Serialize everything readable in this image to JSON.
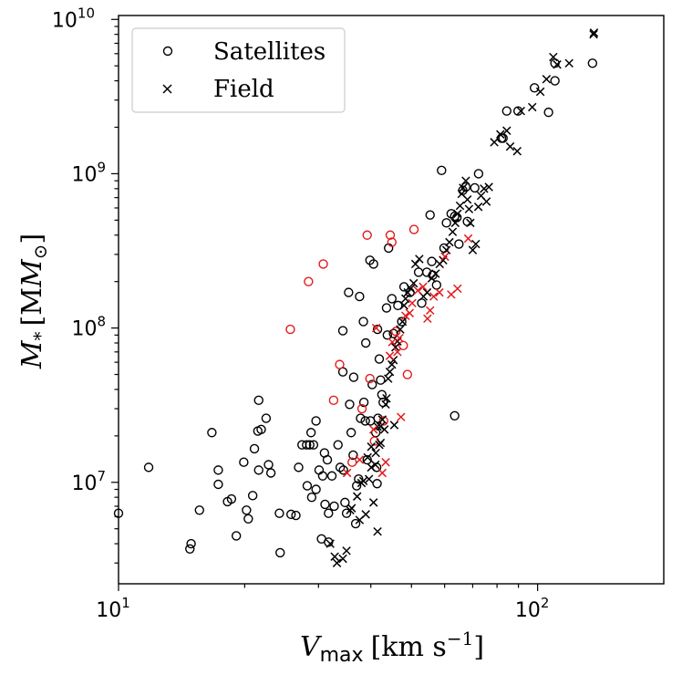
{
  "chart_data": {
    "type": "scatter",
    "xscale": "log",
    "yscale": "log",
    "xlim": [
      10,
      200
    ],
    "ylim": [
      2200000,
      10600000000
    ],
    "xlabel": {
      "var": "V",
      "sub": "max",
      "unit": "[km s",
      "unit_sup": "−1",
      "close": "]"
    },
    "ylabel": {
      "var": "M",
      "sub": "*",
      "unit": "[M",
      "unit_sub": "⊙",
      "close": "]"
    },
    "xticks": [
      {
        "value": 10,
        "base": "10",
        "exp": "1"
      },
      {
        "value": 100,
        "base": "10",
        "exp": "2"
      }
    ],
    "yticks": [
      {
        "value": 10000000,
        "base": "10",
        "exp": "7"
      },
      {
        "value": 100000000,
        "base": "10",
        "exp": "8"
      },
      {
        "value": 1000000000,
        "base": "10",
        "exp": "9"
      },
      {
        "value": 10000000000,
        "base": "10",
        "exp": "10"
      }
    ],
    "legend": {
      "location": "upper-left",
      "entries": [
        {
          "label": "Satellites",
          "marker": "circle"
        },
        {
          "label": "Field",
          "marker": "x"
        }
      ]
    },
    "colors": {
      "black": "#000000",
      "red": "#e31a1c"
    },
    "series": [
      {
        "name": "Satellites",
        "marker": "circle",
        "color": "black",
        "points": [
          [
            10.0,
            6300000.0
          ],
          [
            11.8,
            12500000.0
          ],
          [
            14.8,
            3700000.0
          ],
          [
            14.9,
            4000000.0
          ],
          [
            15.6,
            6600000.0
          ],
          [
            16.7,
            21000000.0
          ],
          [
            17.3,
            12000000.0
          ],
          [
            17.3,
            9700000.0
          ],
          [
            18.2,
            7500000.0
          ],
          [
            18.6,
            7800000.0
          ],
          [
            19.1,
            4500000.0
          ],
          [
            19.9,
            13500000.0
          ],
          [
            20.2,
            6600000.0
          ],
          [
            20.4,
            5800000.0
          ],
          [
            20.9,
            8200000.0
          ],
          [
            21.1,
            16500000.0
          ],
          [
            21.5,
            21500000.0
          ],
          [
            21.6,
            34000000.0
          ],
          [
            21.6,
            12000000.0
          ],
          [
            21.9,
            22000000.0
          ],
          [
            22.5,
            26000000.0
          ],
          [
            22.8,
            13000000.0
          ],
          [
            23.1,
            11500000.0
          ],
          [
            24.2,
            6300000.0
          ],
          [
            24.3,
            3500000.0
          ],
          [
            25.8,
            6200000.0
          ],
          [
            26.5,
            6100000.0
          ],
          [
            26.9,
            12500000.0
          ],
          [
            27.4,
            17500000.0
          ],
          [
            28.1,
            17500000.0
          ],
          [
            28.2,
            9500000.0
          ],
          [
            28.6,
            17500000.0
          ],
          [
            28.8,
            21000000.0
          ],
          [
            28.9,
            8000000.0
          ],
          [
            29.2,
            17500000.0
          ],
          [
            29.6,
            25000000.0
          ],
          [
            29.6,
            9000000.0
          ],
          [
            30.1,
            12000000.0
          ],
          [
            30.5,
            4300000.0
          ],
          [
            30.7,
            11000000.0
          ],
          [
            31.0,
            15500000.0
          ],
          [
            31.1,
            7200000.0
          ],
          [
            31.5,
            14000000.0
          ],
          [
            31.7,
            6300000.0
          ],
          [
            31.7,
            4100000.0
          ],
          [
            32.3,
            11000000.0
          ],
          [
            32.7,
            7000000.0
          ],
          [
            33.4,
            17500000.0
          ],
          [
            33.8,
            12500000.0
          ],
          [
            34.3,
            96000000.0
          ],
          [
            34.3,
            52000000.0
          ],
          [
            34.4,
            12000000.0
          ],
          [
            34.7,
            7400000.0
          ],
          [
            35.0,
            6300000.0
          ],
          [
            35.4,
            170000000.0
          ],
          [
            35.6,
            32000000.0
          ],
          [
            35.9,
            21000000.0
          ],
          [
            36.3,
            15000000.0
          ],
          [
            36.4,
            48000000.0
          ],
          [
            36.8,
            5400000.0
          ],
          [
            37.0,
            9500000.0
          ],
          [
            37.4,
            10500000.0
          ],
          [
            37.6,
            160000000.0
          ],
          [
            37.8,
            26000000.0
          ],
          [
            38.4,
            110000000.0
          ],
          [
            38.5,
            33000000.0
          ],
          [
            38.8,
            25000000.0
          ],
          [
            38.9,
            80000000.0
          ],
          [
            39.2,
            14000000.0
          ],
          [
            39.8,
            275000000.0
          ],
          [
            39.9,
            25000000.0
          ],
          [
            40.3,
            43000000.0
          ],
          [
            40.6,
            260000000.0
          ],
          [
            41.1,
            21000000.0
          ],
          [
            41.3,
            12500000.0
          ],
          [
            41.5,
            98000000.0
          ],
          [
            41.6,
            26000000.0
          ],
          [
            41.9,
            63000000.0
          ],
          [
            42.2,
            46000000.0
          ],
          [
            42.5,
            37000000.0
          ],
          [
            42.8,
            33000000.0
          ],
          [
            43.6,
            135000000.0
          ],
          [
            43.8,
            90000000.0
          ],
          [
            44.1,
            330000000.0
          ],
          [
            44.9,
            155000000.0
          ],
          [
            45.3,
            92000000.0
          ],
          [
            46.4,
            140000000.0
          ],
          [
            47.4,
            110000000.0
          ],
          [
            48.0,
            185000000.0
          ],
          [
            49.6,
            170000000.0
          ],
          [
            52.0,
            230000000.0
          ],
          [
            52.9,
            145000000.0
          ],
          [
            54.4,
            230000000.0
          ],
          [
            55.4,
            540000000.0
          ],
          [
            55.9,
            270000000.0
          ],
          [
            56.2,
            220000000.0
          ],
          [
            57.4,
            190000000.0
          ],
          [
            59.0,
            1050000000.0
          ],
          [
            59.8,
            330000000.0
          ],
          [
            60.6,
            480000000.0
          ],
          [
            62.2,
            550000000.0
          ],
          [
            63.4,
            530000000.0
          ],
          [
            64.2,
            520000000.0
          ],
          [
            64.9,
            350000000.0
          ],
          [
            66.3,
            780000000.0
          ],
          [
            67.4,
            820000000.0
          ],
          [
            68.0,
            490000000.0
          ],
          [
            70.8,
            810000000.0
          ],
          [
            72.3,
            1000000000.0
          ],
          [
            82.0,
            1700000000.0
          ],
          [
            82.7,
            1700000000.0
          ],
          [
            84.4,
            2550000000.0
          ],
          [
            89.8,
            2550000000.0
          ],
          [
            98.3,
            3600000000.0
          ],
          [
            106.2,
            2500000000.0
          ],
          [
            110.0,
            4000000000.0
          ],
          [
            110.0,
            5200000000.0
          ],
          [
            135.2,
            5200000000.0
          ],
          [
            63.4,
            27000000.0
          ],
          [
            41.4,
            9800000.0
          ]
        ]
      },
      {
        "name": "Satellites",
        "marker": "circle",
        "color": "red",
        "points": [
          [
            25.7,
            98000000.0
          ],
          [
            28.4,
            200000000.0
          ],
          [
            30.8,
            260000000.0
          ],
          [
            32.6,
            34000000.0
          ],
          [
            33.7,
            58000000.0
          ],
          [
            39.2,
            400000000.0
          ],
          [
            39.8,
            47000000.0
          ],
          [
            44.5,
            400000000.0
          ],
          [
            44.9,
            360000000.0
          ],
          [
            45.9,
            95000000.0
          ],
          [
            47.8,
            77000000.0
          ],
          [
            48.9,
            50000000.0
          ],
          [
            50.7,
            435000000.0
          ],
          [
            38.1,
            30000000.0
          ],
          [
            42.9,
            25000000.0
          ],
          [
            36.1,
            13500000.0
          ],
          [
            40.8,
            18500000.0
          ]
        ]
      },
      {
        "name": "Field",
        "marker": "x",
        "color": "black",
        "points": [
          [
            32.0,
            4000000.0
          ],
          [
            32.8,
            3300000.0
          ],
          [
            33.2,
            3000000.0
          ],
          [
            34.3,
            3200000.0
          ],
          [
            35.0,
            3600000.0
          ],
          [
            35.7,
            6600000.0
          ],
          [
            36.0,
            6800000.0
          ],
          [
            37.1,
            8100000.0
          ],
          [
            37.6,
            5700000.0
          ],
          [
            38.0,
            9900000.0
          ],
          [
            38.4,
            10200000.0
          ],
          [
            38.9,
            6200000.0
          ],
          [
            39.3,
            14500000.0
          ],
          [
            39.6,
            10500000.0
          ],
          [
            40.1,
            12500000.0
          ],
          [
            40.1,
            17000000.0
          ],
          [
            40.6,
            7400000.0
          ],
          [
            41.0,
            13000000.0
          ],
          [
            41.1,
            15500000.0
          ],
          [
            41.5,
            23000000.0
          ],
          [
            41.5,
            4800000.0
          ],
          [
            41.9,
            17500000.0
          ],
          [
            42.2,
            23000000.0
          ],
          [
            42.2,
            18000000.0
          ],
          [
            42.6,
            25500000.0
          ],
          [
            43.1,
            22000000.0
          ],
          [
            43.4,
            32000000.0
          ],
          [
            43.6,
            35000000.0
          ],
          [
            44.0,
            47000000.0
          ],
          [
            44.4,
            52000000.0
          ],
          [
            44.9,
            58000000.0
          ],
          [
            45.3,
            62000000.0
          ],
          [
            45.5,
            23500000.0
          ],
          [
            45.8,
            75000000.0
          ],
          [
            46.3,
            82000000.0
          ],
          [
            47.0,
            98000000.0
          ],
          [
            47.6,
            110000000.0
          ],
          [
            48.0,
            140000000.0
          ],
          [
            48.4,
            155000000.0
          ],
          [
            49.0,
            170000000.0
          ],
          [
            49.8,
            180000000.0
          ],
          [
            50.6,
            195000000.0
          ],
          [
            51.1,
            260000000.0
          ],
          [
            52.2,
            280000000.0
          ],
          [
            53.4,
            160000000.0
          ],
          [
            54.5,
            170000000.0
          ],
          [
            55.9,
            210000000.0
          ],
          [
            57.1,
            225000000.0
          ],
          [
            58.4,
            260000000.0
          ],
          [
            59.5,
            275000000.0
          ],
          [
            60.6,
            320000000.0
          ],
          [
            61.6,
            360000000.0
          ],
          [
            62.7,
            420000000.0
          ],
          [
            63.6,
            480000000.0
          ],
          [
            64.4,
            550000000.0
          ],
          [
            65.3,
            620000000.0
          ],
          [
            65.9,
            740000000.0
          ],
          [
            66.4,
            810000000.0
          ],
          [
            67.4,
            900000000.0
          ],
          [
            68.0,
            680000000.0
          ],
          [
            68.6,
            590000000.0
          ],
          [
            69.1,
            480000000.0
          ],
          [
            70.0,
            320000000.0
          ],
          [
            71.2,
            350000000.0
          ],
          [
            72.2,
            610000000.0
          ],
          [
            73.3,
            720000000.0
          ],
          [
            74.5,
            800000000.0
          ],
          [
            75.5,
            660000000.0
          ],
          [
            76.5,
            820000000.0
          ],
          [
            78.8,
            1600000000.0
          ],
          [
            81.5,
            1800000000.0
          ],
          [
            84.4,
            1900000000.0
          ],
          [
            86.0,
            1500000000.0
          ],
          [
            89.4,
            1400000000.0
          ],
          [
            91.2,
            2550000000.0
          ],
          [
            97.1,
            2700000000.0
          ],
          [
            101.5,
            3400000000.0
          ],
          [
            105.0,
            4100000000.0
          ],
          [
            109.0,
            5700000000.0
          ],
          [
            111.3,
            5100000000.0
          ],
          [
            118.9,
            5200000000.0
          ],
          [
            136.0,
            8000000000.0
          ],
          [
            136.3,
            8200000000.0
          ]
        ]
      },
      {
        "name": "Field",
        "marker": "x",
        "color": "red",
        "points": [
          [
            35.1,
            11500000.0
          ],
          [
            37.6,
            14000000.0
          ],
          [
            40.6,
            22000000.0
          ],
          [
            41.2,
            100000000.0
          ],
          [
            42.6,
            11500000.0
          ],
          [
            43.4,
            13500000.0
          ],
          [
            44.4,
            66000000.0
          ],
          [
            45.0,
            81000000.0
          ],
          [
            46.3,
            70000000.0
          ],
          [
            46.8,
            86000000.0
          ],
          [
            47.2,
            26500000.0
          ],
          [
            48.4,
            120000000.0
          ],
          [
            49.5,
            125000000.0
          ],
          [
            50.2,
            145000000.0
          ],
          [
            51.8,
            175000000.0
          ],
          [
            53.3,
            185000000.0
          ],
          [
            55.4,
            130000000.0
          ],
          [
            56.5,
            160000000.0
          ],
          [
            58.3,
            170000000.0
          ],
          [
            60.1,
            290000000.0
          ],
          [
            68.3,
            380000000.0
          ],
          [
            62.2,
            165000000.0
          ],
          [
            64.4,
            180000000.0
          ],
          [
            54.6,
            115000000.0
          ]
        ]
      }
    ]
  }
}
